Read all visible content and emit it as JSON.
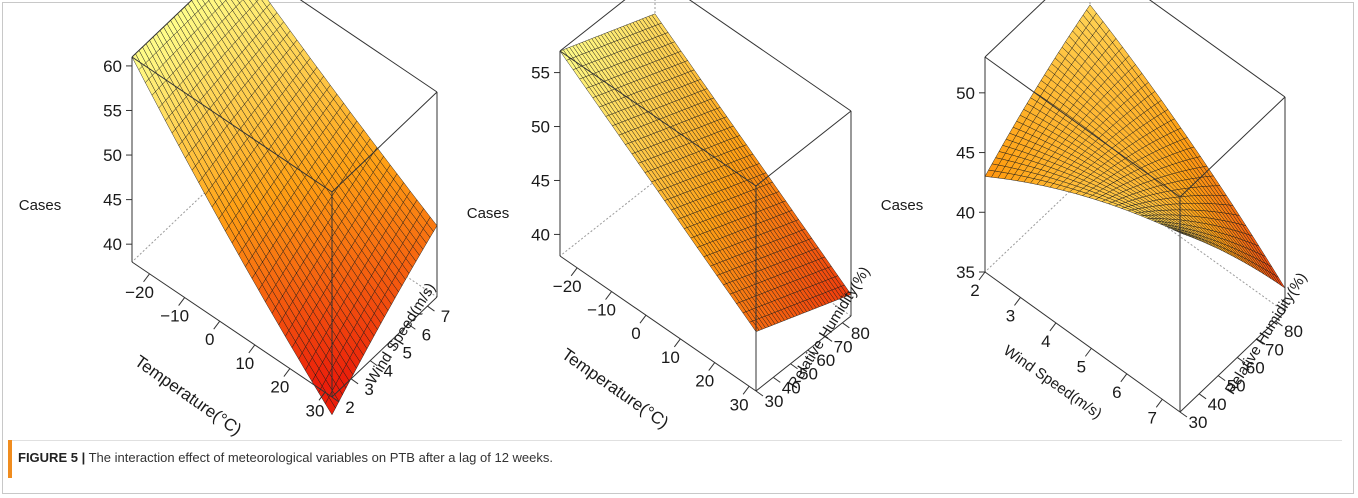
{
  "caption": {
    "label": "FIGURE 5 |",
    "text": "The interaction effect of meteorological variables on PTB after a lag of 12 weeks."
  },
  "chart_data": [
    {
      "type": "surface3d",
      "zlabel": "Cases",
      "xlabel": "Temperature(°C)",
      "ylabel": "Wind Speed(m/s)",
      "x_ticks": [
        "−20",
        "−10",
        "0",
        "10",
        "20",
        "30"
      ],
      "y_ticks": [
        "2",
        "3",
        "4",
        "5",
        "6",
        "7"
      ],
      "z_ticks": [
        "40",
        "45",
        "50",
        "55",
        "60"
      ],
      "xlim": [
        -25,
        32
      ],
      "ylim": [
        2,
        7.5
      ],
      "zlim": [
        38,
        61
      ],
      "corners": {
        "xmin_ymin": 61,
        "xmin_ymax": 61,
        "xmax_ymin": 36,
        "xmax_ymax": 46
      }
    },
    {
      "type": "surface3d",
      "zlabel": "Cases",
      "xlabel": "Temperature(°C)",
      "ylabel": "Relative Humidity(%)",
      "x_ticks": [
        "−20",
        "−10",
        "0",
        "10",
        "20",
        "30"
      ],
      "y_ticks": [
        "30",
        "40",
        "50",
        "60",
        "70",
        "80"
      ],
      "z_ticks": [
        "40",
        "45",
        "50",
        "55"
      ],
      "xlim": [
        -25,
        32
      ],
      "ylim": [
        30,
        85
      ],
      "zlim": [
        38,
        57
      ],
      "corners": {
        "xmin_ymin": 57,
        "xmin_ymax": 53.5,
        "xmax_ymin": 43.5,
        "xmax_ymax": 40
      }
    },
    {
      "type": "surface3d",
      "zlabel": "Cases",
      "xlabel": "Wind Speed(m/s)",
      "ylabel": "Relative Humidity(%)",
      "x_ticks": [
        "2",
        "3",
        "4",
        "5",
        "6",
        "7"
      ],
      "y_ticks": [
        "30",
        "40",
        "50",
        "60",
        "70",
        "80"
      ],
      "z_ticks": [
        "35",
        "40",
        "45",
        "50"
      ],
      "xlim": [
        2,
        7.5
      ],
      "ylim": [
        30,
        85
      ],
      "zlim": [
        35,
        53
      ],
      "corners": {
        "xmin_ymin": 43,
        "xmin_ymax": 49,
        "xmax_ymin": 50,
        "xmax_ymax": 37
      }
    }
  ]
}
